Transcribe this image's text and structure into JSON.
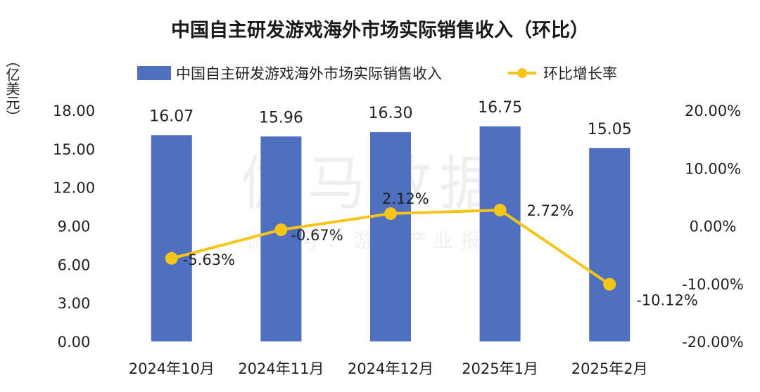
{
  "watermark": {
    "main": "伽马数据",
    "sub": "微信号：游戏产业报告"
  },
  "chart_data": {
    "type": "bar",
    "title": "中国自主研发游戏海外市场实际销售收入（环比）",
    "categories": [
      "2024年10月",
      "2024年11月",
      "2024年12月",
      "2025年1月",
      "2025年2月"
    ],
    "series": [
      {
        "name": "中国自主研发游戏海外市场实际销售收入",
        "type": "bar",
        "axis": "left",
        "values": [
          16.07,
          15.96,
          16.3,
          16.75,
          15.05
        ],
        "labels": [
          "16.07",
          "15.96",
          "16.30",
          "16.75",
          "15.05"
        ],
        "color": "#4f6fc1"
      },
      {
        "name": "环比增长率",
        "type": "line",
        "axis": "right",
        "values": [
          -5.63,
          -0.67,
          2.12,
          2.72,
          -10.12
        ],
        "labels": [
          "-5.63%",
          "-0.67%",
          "2.12%",
          "2.72%",
          "-10.12%"
        ],
        "color": "#f5c518"
      }
    ],
    "y_left": {
      "label": "（亿美元）",
      "range": [
        0,
        18
      ],
      "ticks": [
        "0.00",
        "3.00",
        "6.00",
        "9.00",
        "12.00",
        "15.00",
        "18.00"
      ],
      "tick_values": [
        0,
        3,
        6,
        9,
        12,
        15,
        18
      ]
    },
    "y_right": {
      "range": [
        -20,
        20
      ],
      "ticks": [
        "-20.00%",
        "-10.00%",
        "0.00%",
        "10.00%",
        "20.00%"
      ],
      "tick_values": [
        -20,
        -10,
        0,
        10,
        20
      ]
    },
    "legend_position": "top",
    "grid": false
  }
}
